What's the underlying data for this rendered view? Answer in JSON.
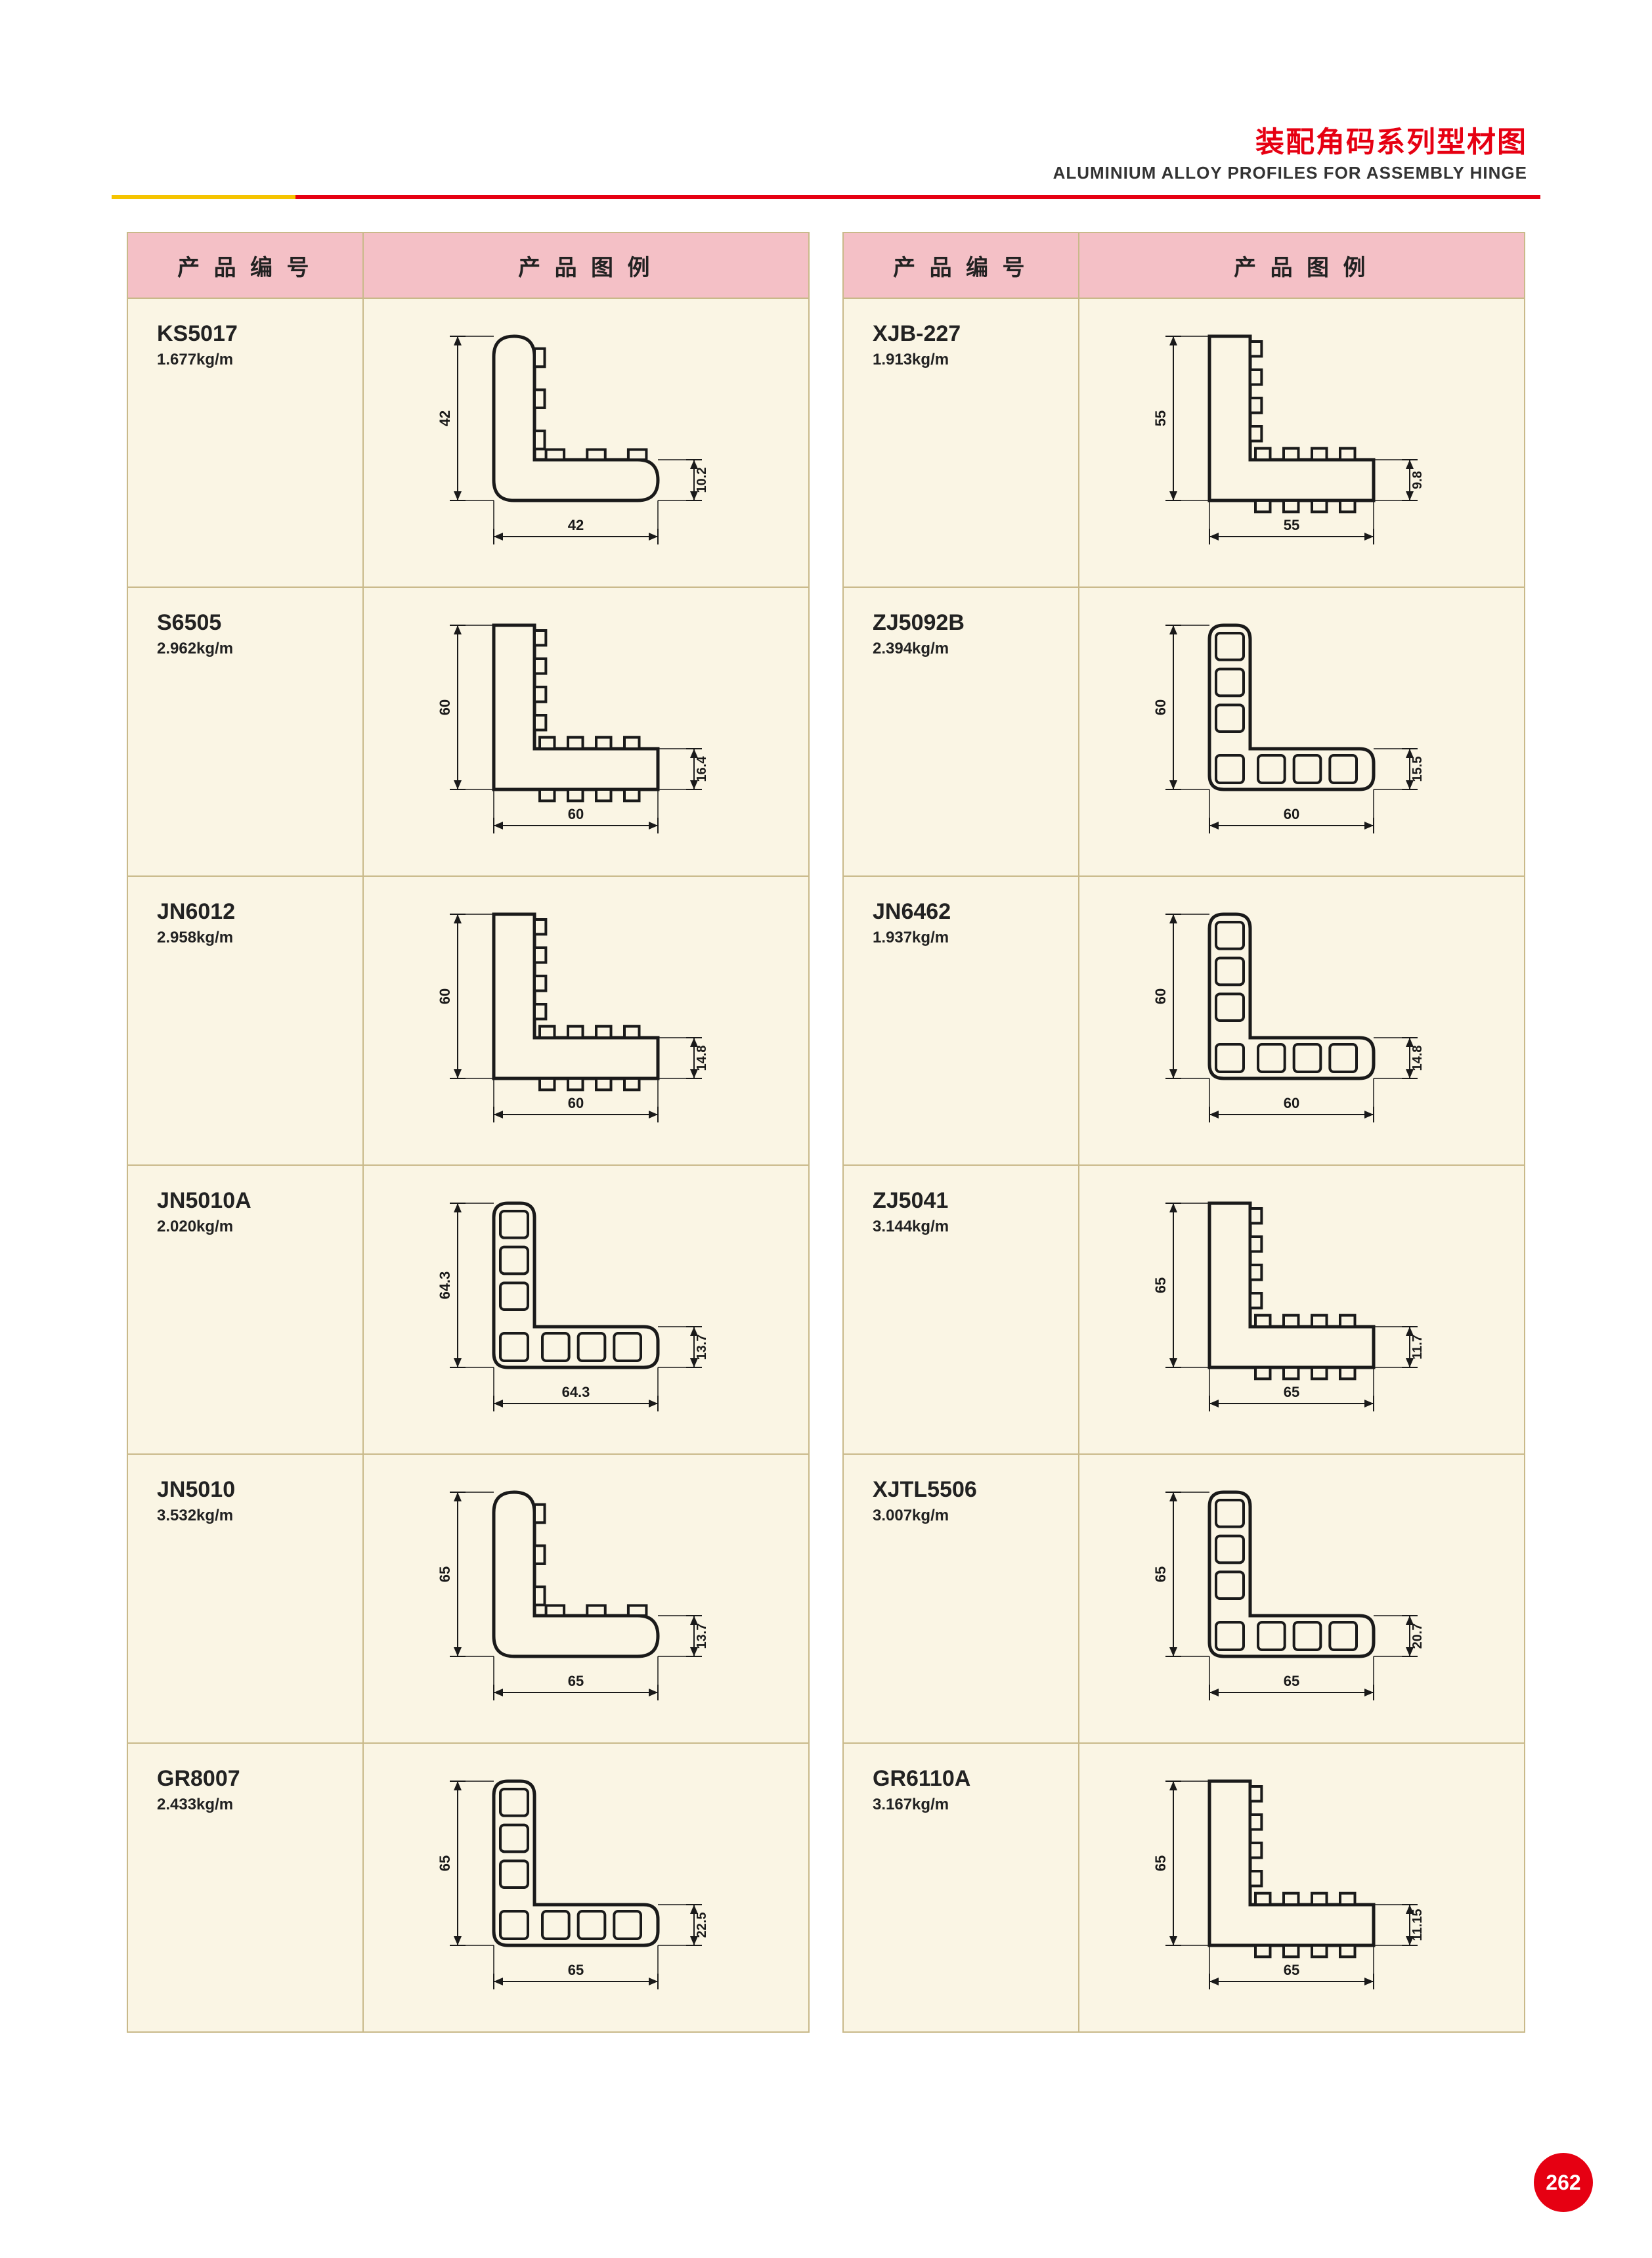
{
  "header": {
    "title_cn": "装配角码系列型材图",
    "title_en": "ALUMINIUM ALLOY PROFILES FOR ASSEMBLY HINGE"
  },
  "table_headers": {
    "code": "产 品 编 号",
    "figure": "产 品 图 例"
  },
  "colors": {
    "accent_red": "#e60012",
    "accent_yellow": "#f5c400",
    "header_bg": "#f4c0c6",
    "cell_bg": "#faf5e4",
    "border": "#c9b98a",
    "stroke": "#1a1a1a"
  },
  "left_table": [
    {
      "code": "KS5017",
      "weight": "1.677kg/m",
      "dim_w": "42",
      "dim_h": "42",
      "dim_t": "10.2",
      "style": 1
    },
    {
      "code": "S6505",
      "weight": "2.962kg/m",
      "dim_w": "60",
      "dim_h": "60",
      "dim_t": "16.4",
      "style": 3
    },
    {
      "code": "JN6012",
      "weight": "2.958kg/m",
      "dim_w": "60",
      "dim_h": "60",
      "dim_t": "14.8",
      "style": 3
    },
    {
      "code": "JN5010A",
      "weight": "2.020kg/m",
      "dim_w": "64.3",
      "dim_h": "64.3",
      "dim_t": "13.7",
      "style": 2
    },
    {
      "code": "JN5010",
      "weight": "3.532kg/m",
      "dim_w": "65",
      "dim_h": "65",
      "dim_t": "13.7",
      "style": 1
    },
    {
      "code": "GR8007",
      "weight": "2.433kg/m",
      "dim_w": "65",
      "dim_h": "65",
      "dim_t": "22.5",
      "style": 2
    }
  ],
  "right_table": [
    {
      "code": "XJB-227",
      "weight": "1.913kg/m",
      "dim_w": "55",
      "dim_h": "55",
      "dim_t": "9.8",
      "style": 3
    },
    {
      "code": "ZJ5092B",
      "weight": "2.394kg/m",
      "dim_w": "60",
      "dim_h": "60",
      "dim_t": "15.5",
      "style": 2
    },
    {
      "code": "JN6462",
      "weight": "1.937kg/m",
      "dim_w": "60",
      "dim_h": "60",
      "dim_t": "14.8",
      "style": 2
    },
    {
      "code": "ZJ5041",
      "weight": "3.144kg/m",
      "dim_w": "65",
      "dim_h": "65",
      "dim_t": "11.7",
      "style": 3
    },
    {
      "code": "XJTL5506",
      "weight": "3.007kg/m",
      "dim_w": "65",
      "dim_h": "65",
      "dim_t": "20.7",
      "style": 2
    },
    {
      "code": "GR6110A",
      "weight": "3.167kg/m",
      "dim_w": "65",
      "dim_h": "65",
      "dim_t": "11.15",
      "style": 3
    }
  ],
  "page_number": "262"
}
